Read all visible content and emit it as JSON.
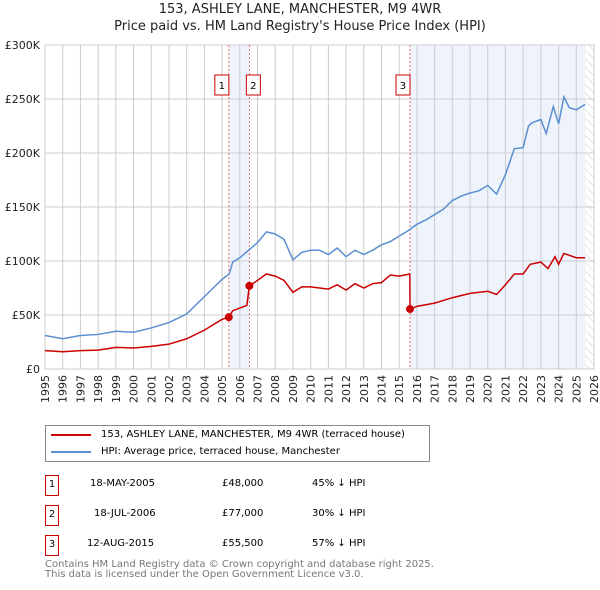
{
  "title": "153, ASHLEY LANE, MANCHESTER, M9 4WR",
  "subtitle": "Price paid vs. HM Land Registry's House Price Index (HPI)",
  "chart_data": {
    "type": "line",
    "title": "153, ASHLEY LANE, MANCHESTER, M9 4WR",
    "subtitle": "Price paid vs. HM Land Registry's House Price Index (HPI)",
    "xlim": [
      1995,
      2026
    ],
    "ylim": [
      0,
      300000
    ],
    "xticks": [
      "1995",
      "1996",
      "1997",
      "1998",
      "1999",
      "2000",
      "2001",
      "2002",
      "2003",
      "2004",
      "2005",
      "2006",
      "2007",
      "2008",
      "2009",
      "2010",
      "2011",
      "2012",
      "2013",
      "2014",
      "2015",
      "2016",
      "2017",
      "2018",
      "2019",
      "2020",
      "2021",
      "2022",
      "2023",
      "2024",
      "2025",
      "2026"
    ],
    "yticks": [
      {
        "v": 0,
        "l": "£0"
      },
      {
        "v": 50000,
        "l": "£50K"
      },
      {
        "v": 100000,
        "l": "£100K"
      },
      {
        "v": 150000,
        "l": "£150K"
      },
      {
        "v": 200000,
        "l": "£200K"
      },
      {
        "v": 250000,
        "l": "£250K"
      },
      {
        "v": 300000,
        "l": "£300K"
      }
    ],
    "grid": true,
    "series": [
      {
        "name": "153, ASHLEY LANE, MANCHESTER, M9 4WR (terraced house)",
        "color": "#cc0000",
        "x": [
          1995,
          1996,
          1997,
          1998,
          1999,
          2000,
          2001,
          2002,
          2003,
          2004,
          2005,
          2005.38,
          2005.6,
          2006.4,
          2006.54,
          2007,
          2007.5,
          2008,
          2008.5,
          2009,
          2009.5,
          2010,
          2011,
          2011.5,
          2012,
          2012.5,
          2013,
          2013.5,
          2014,
          2014.5,
          2015,
          2015.6,
          2015.61,
          2016,
          2017,
          2018,
          2019,
          2020,
          2020.5,
          2021,
          2021.5,
          2022,
          2022.4,
          2023,
          2023.4,
          2023.8,
          2024,
          2024.3,
          2025,
          2025.5
        ],
        "y": [
          17000,
          16000,
          17000,
          17500,
          20000,
          19500,
          21000,
          23000,
          28000,
          36000,
          46000,
          48000,
          54000,
          59000,
          77000,
          82000,
          88000,
          86000,
          82000,
          71000,
          76000,
          76000,
          74000,
          78000,
          73000,
          79000,
          75000,
          79000,
          80000,
          87000,
          86000,
          88000,
          55500,
          58000,
          61000,
          66000,
          70000,
          72000,
          69000,
          78000,
          88000,
          88000,
          97000,
          99000,
          93000,
          104000,
          97000,
          107000,
          103000,
          103000
        ]
      },
      {
        "name": "HPI: Average price, terraced house, Manchester",
        "color": "#5b8fd0",
        "x": [
          1995,
          1996,
          1997,
          1998,
          1999,
          2000,
          2001,
          2002,
          2003,
          2004,
          2005,
          2005.4,
          2005.6,
          2006,
          2006.5,
          2007,
          2007.5,
          2008,
          2008.5,
          2009,
          2009.5,
          2010,
          2010.5,
          2011,
          2011.5,
          2012,
          2012.5,
          2013,
          2013.5,
          2014,
          2014.5,
          2015,
          2015.5,
          2016,
          2016.5,
          2017,
          2017.5,
          2018,
          2018.5,
          2019,
          2019.5,
          2020,
          2020.5,
          2021,
          2021.5,
          2022,
          2022.3,
          2022.5,
          2023,
          2023.3,
          2023.7,
          2024,
          2024.3,
          2024.6,
          2025,
          2025.5
        ],
        "y": [
          31000,
          28000,
          31000,
          32000,
          35000,
          34000,
          38000,
          43000,
          51000,
          67000,
          83000,
          88000,
          99000,
          103000,
          110000,
          117000,
          127000,
          125000,
          120000,
          101000,
          108000,
          110000,
          110000,
          106000,
          112000,
          104000,
          110000,
          106000,
          110000,
          115000,
          118000,
          123000,
          128000,
          134000,
          138000,
          143000,
          148000,
          156000,
          160000,
          163000,
          165000,
          170000,
          162000,
          180000,
          204000,
          205000,
          225000,
          228000,
          231000,
          218000,
          243000,
          227000,
          252000,
          242000,
          240000,
          245000
        ]
      }
    ],
    "sales": [
      {
        "n": "1",
        "x": 2005.38,
        "y": 48000
      },
      {
        "n": "2",
        "x": 2006.54,
        "y": 77000
      },
      {
        "n": "3",
        "x": 2015.61,
        "y": 55500
      }
    ],
    "shaded": [
      [
        2005.38,
        2006.54
      ],
      [
        2015.61,
        2025.5
      ]
    ],
    "hatched_from": 2025.5
  },
  "legend": [
    "153, ASHLEY LANE, MANCHESTER, M9 4WR (terraced house)",
    "HPI: Average price, terraced house, Manchester"
  ],
  "rows": [
    {
      "n": "1",
      "date": "18-MAY-2005",
      "price": "£48,000",
      "hpi": "45% ↓ HPI"
    },
    {
      "n": "2",
      "date": "18-JUL-2006",
      "price": "£77,000",
      "hpi": "30% ↓ HPI"
    },
    {
      "n": "3",
      "date": "12-AUG-2015",
      "price": "£55,500",
      "hpi": "57% ↓ HPI"
    }
  ],
  "footer": [
    "Contains HM Land Registry data © Crown copyright and database right 2025.",
    "This data is licensed under the Open Government Licence v3.0."
  ]
}
